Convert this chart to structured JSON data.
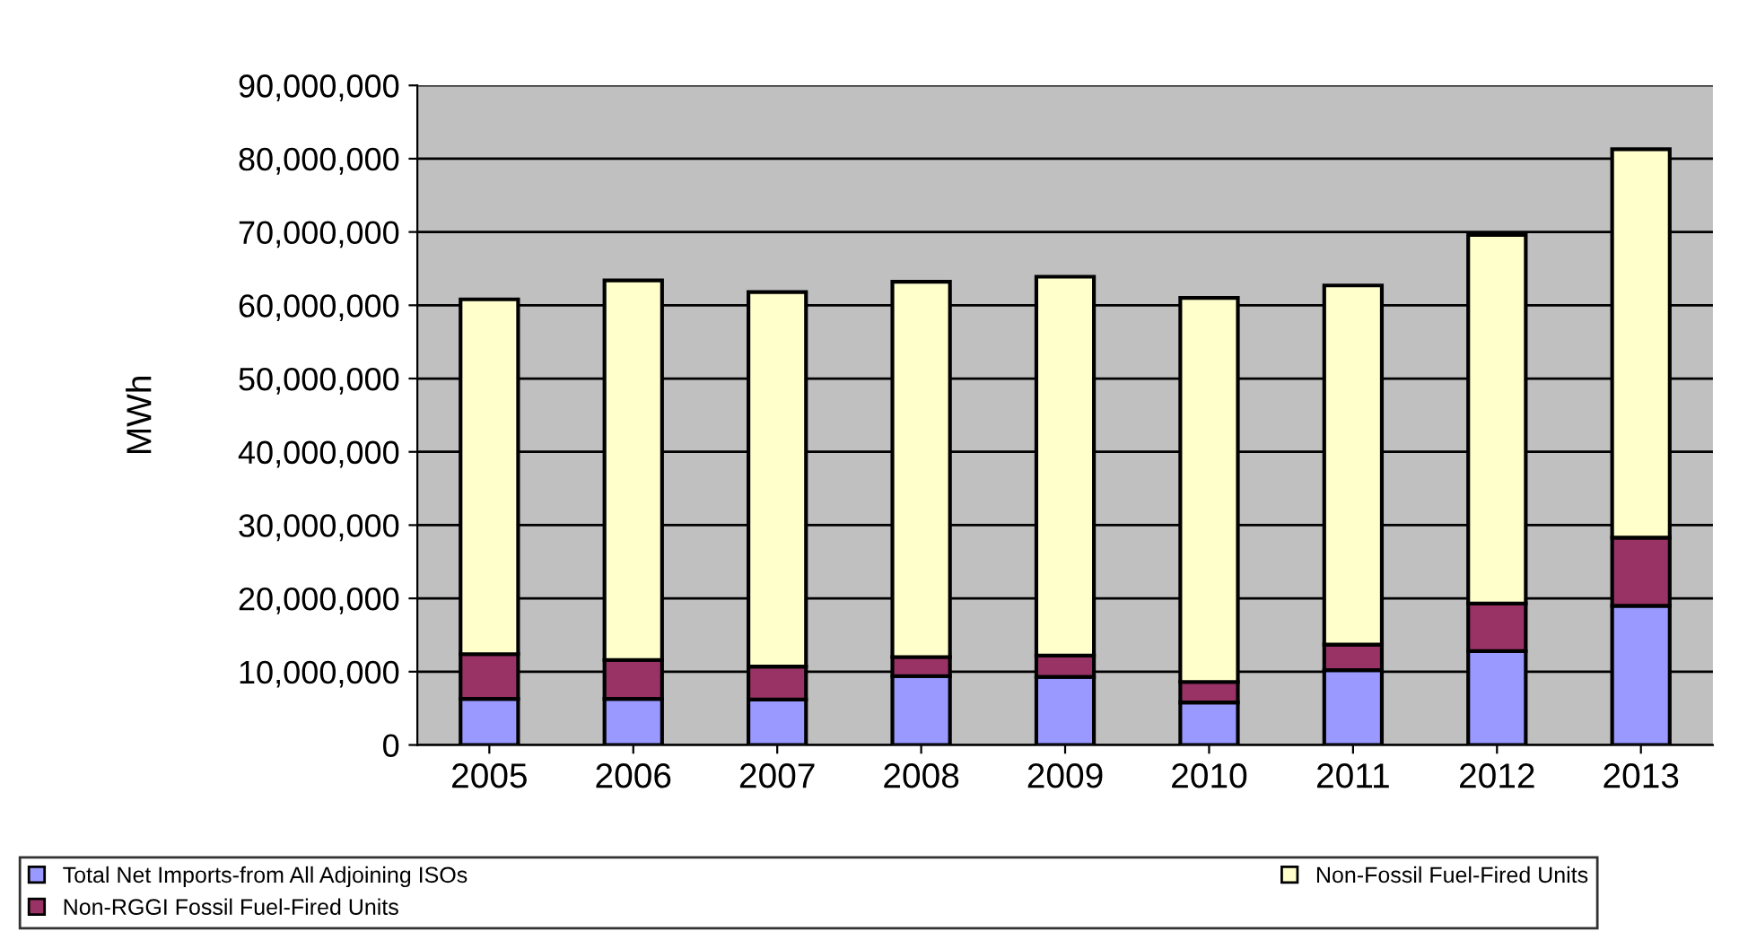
{
  "chart_data": {
    "type": "bar",
    "stacked": true,
    "ylabel": "MWh",
    "categories": [
      "2005",
      "2006",
      "2007",
      "2008",
      "2009",
      "2010",
      "2011",
      "2012",
      "2013"
    ],
    "series": [
      {
        "name": "Total Net Imports-from All Adjoining ISOs",
        "color": "#9999ff",
        "values": [
          6300000,
          6300000,
          6200000,
          9400000,
          9300000,
          5800000,
          10200000,
          12800000,
          19000000
        ]
      },
      {
        "name": "Non-RGGI Fossil Fuel-Fired Units",
        "color": "#993366",
        "values": [
          6100000,
          5300000,
          4500000,
          2600000,
          2900000,
          2800000,
          3500000,
          6500000,
          9300000
        ]
      },
      {
        "name": "Non-Fossil Fuel-Fired Units",
        "color": "#ffffcc",
        "values": [
          48400000,
          51800000,
          51100000,
          51200000,
          51700000,
          52400000,
          49000000,
          50300000,
          53000000
        ]
      }
    ],
    "ylim": [
      0,
      90000000
    ],
    "yticks": [
      {
        "value": 0,
        "label": "0"
      },
      {
        "value": 10000000,
        "label": "10,000,000"
      },
      {
        "value": 20000000,
        "label": "20,000,000"
      },
      {
        "value": 30000000,
        "label": "30,000,000"
      },
      {
        "value": 40000000,
        "label": "40,000,000"
      },
      {
        "value": 50000000,
        "label": "50,000,000"
      },
      {
        "value": 60000000,
        "label": "60,000,000"
      },
      {
        "value": 70000000,
        "label": "70,000,000"
      },
      {
        "value": 80000000,
        "label": "80,000,000"
      },
      {
        "value": 90000000,
        "label": "90,000,000"
      }
    ],
    "grid": "y",
    "legend": "bottom"
  }
}
